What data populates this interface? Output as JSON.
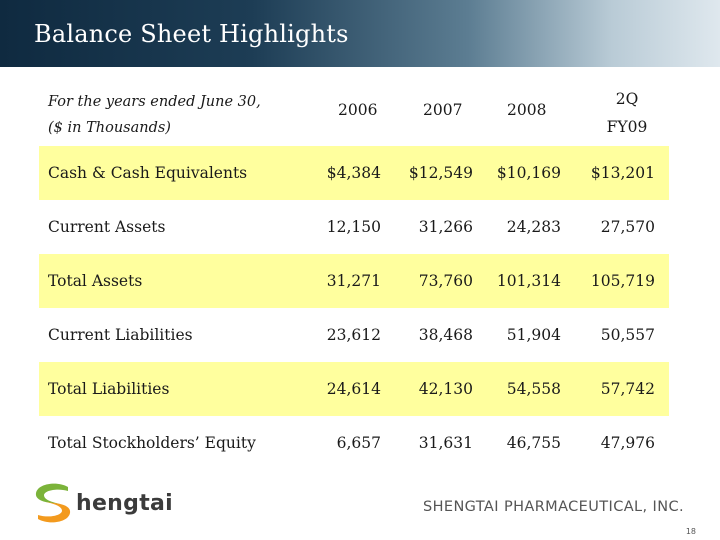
{
  "slide": {
    "title": "Balance Sheet Highlights",
    "page_number": "18"
  },
  "table": {
    "header_label_line1": "For the years ended June 30,",
    "header_label_line2": "($ in Thousands)",
    "columns": [
      "2006",
      "2007",
      "2008",
      "2Q",
      "FY09"
    ],
    "rows": [
      {
        "label": "Cash & Cash Equivalents",
        "values": [
          "$4,384",
          "$12,549",
          "$10,169",
          "$13,201"
        ]
      },
      {
        "label": "Current Assets",
        "values": [
          "12,150",
          "31,266",
          "24,283",
          "27,570"
        ]
      },
      {
        "label": "Total Assets",
        "values": [
          "31,271",
          "73,760",
          "101,314",
          "105,719"
        ]
      },
      {
        "label": "Current Liabilities",
        "values": [
          "23,612",
          "38,468",
          "51,904",
          "50,557"
        ]
      },
      {
        "label": "Total Liabilities",
        "values": [
          "24,614",
          "42,130",
          "54,558",
          "57,742"
        ]
      },
      {
        "label": "Total Stockholders’ Equity",
        "values": [
          "6,657",
          "31,631",
          "46,755",
          "47,976"
        ]
      }
    ]
  },
  "footer": {
    "logo_text": "hengtai",
    "company_name": "SHENGTAI PHARMACEUTICAL, INC."
  },
  "colors": {
    "header_dark": "#0f2a40",
    "row_highlight": "#ffff9e",
    "logo_green": "#7bb33a",
    "logo_orange": "#f39a1e"
  }
}
